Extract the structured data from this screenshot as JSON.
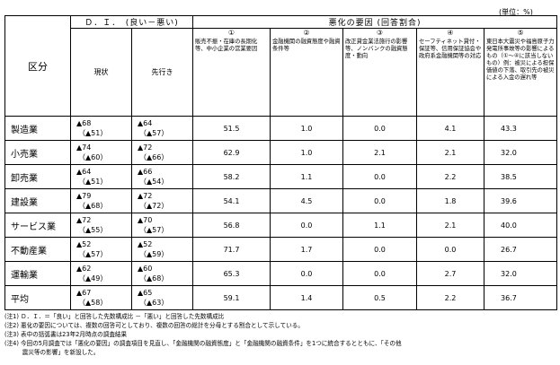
{
  "unit_label": "(単位：%)",
  "header": {
    "category": "区分",
    "di_group": "Ｄ．Ｉ．　(良い－悪い)",
    "di_current": "現状",
    "di_forecast": "先行き",
    "factor_group": "悪化の要因 (回答割合)"
  },
  "factors": [
    {
      "num": "①",
      "text": "販売不振・在庫の長期化等、中小企業の営業要因"
    },
    {
      "num": "②",
      "text": "金融機関の融資態度や融資条件等"
    },
    {
      "num": "③",
      "text": "改正貸金業法施行の影響等、ノンバンクの融資態度・動向"
    },
    {
      "num": "④",
      "text": "セーフティネット貸付・保証等、信用保証協会や政府系金融機関等の対応"
    },
    {
      "num": "⑤",
      "text": "東日本大震災や福島原子力発電所事故等の影響によるもの（①～④に該当しないもの）例：被災による担保価値の下落、取引先の被災による入金の遅れ等"
    }
  ],
  "rows": [
    {
      "category": "製造業",
      "di_current": "▲68",
      "di_current_sub": "（▲51）",
      "di_forecast": "▲64",
      "di_forecast_sub": "（▲57）",
      "f1": "51.5",
      "f2": "1.0",
      "f3": "0.0",
      "f4": "4.1",
      "f5": "43.3"
    },
    {
      "category": "小売業",
      "di_current": "▲74",
      "di_current_sub": "（▲60）",
      "di_forecast": "▲72",
      "di_forecast_sub": "（▲66）",
      "f1": "62.9",
      "f2": "1.0",
      "f3": "2.1",
      "f4": "2.1",
      "f5": "32.0"
    },
    {
      "category": "卸売業",
      "di_current": "▲64",
      "di_current_sub": "（▲51）",
      "di_forecast": "▲66",
      "di_forecast_sub": "（▲54）",
      "f1": "58.2",
      "f2": "1.1",
      "f3": "0.0",
      "f4": "2.2",
      "f5": "38.5"
    },
    {
      "category": "建設業",
      "di_current": "▲79",
      "di_current_sub": "（▲68）",
      "di_forecast": "▲72",
      "di_forecast_sub": "（▲72）",
      "f1": "54.1",
      "f2": "4.5",
      "f3": "0.0",
      "f4": "1.8",
      "f5": "39.6"
    },
    {
      "category": "サービス業",
      "di_current": "▲72",
      "di_current_sub": "（▲55）",
      "di_forecast": "▲70",
      "di_forecast_sub": "（▲57）",
      "f1": "56.8",
      "f2": "0.0",
      "f3": "1.1",
      "f4": "2.1",
      "f5": "40.0"
    },
    {
      "category": "不動産業",
      "di_current": "▲52",
      "di_current_sub": "（▲57）",
      "di_forecast": "▲52",
      "di_forecast_sub": "（▲59）",
      "f1": "71.7",
      "f2": "1.7",
      "f3": "0.0",
      "f4": "0.0",
      "f5": "26.7"
    },
    {
      "category": "運輸業",
      "di_current": "▲62",
      "di_current_sub": "（▲49）",
      "di_forecast": "▲60",
      "di_forecast_sub": "（▲68）",
      "f1": "65.3",
      "f2": "0.0",
      "f3": "0.0",
      "f4": "2.7",
      "f5": "32.0"
    },
    {
      "category": "平均",
      "di_current": "▲67",
      "di_current_sub": "（▲58）",
      "di_forecast": "▲65",
      "di_forecast_sub": "（▲63）",
      "f1": "59.1",
      "f2": "1.4",
      "f3": "0.5",
      "f4": "2.2",
      "f5": "36.7"
    }
  ],
  "notes": [
    "(注1) Ｄ．Ｉ．＝「良い」と回答した先数構成比 －「悪い」と回答した先数構成比",
    "(注2) 悪化の要因については、複数の回答可としており、複数の回答の総計を分母とする割合として示している。",
    "(注3) 表中の括弧書は23年2月時点の調査結果",
    "(注4) 今回の5月調査では「悪化の要因」の調査項目を見直し、「金融機関の融資態度」と「金融機関の融資条件」を1つに統合するとともに、「その他",
    "　　　震災等の影響」を新設した。"
  ]
}
